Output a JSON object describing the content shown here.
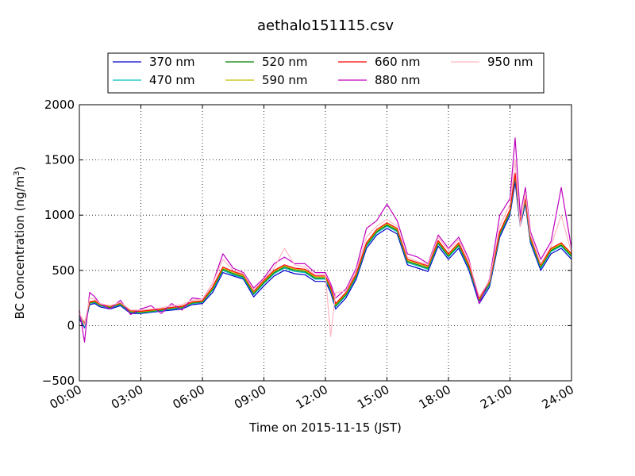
{
  "chart_data": {
    "type": "line",
    "title": "aethalo151115.csv",
    "xlabel": "Time on 2015-11-15 (JST)",
    "ylabel_main": "BC Concentration (ng/m",
    "ylabel_sup": "3",
    "ylabel_close": ")",
    "x_unit": "hours",
    "xlim": [
      0,
      24
    ],
    "ylim": [
      -500,
      2000
    ],
    "x_ticks": [
      0,
      3,
      6,
      9,
      12,
      15,
      18,
      21,
      24
    ],
    "x_tick_labels": [
      "00:00",
      "03:00",
      "06:00",
      "09:00",
      "12:00",
      "15:00",
      "18:00",
      "21:00",
      "24:00"
    ],
    "y_ticks": [
      -500,
      0,
      500,
      1000,
      1500,
      2000
    ],
    "y_tick_labels": [
      "−500",
      "0",
      "500",
      "1000",
      "1500",
      "2000"
    ],
    "grid": true,
    "legend_position": "top",
    "x": [
      0.0,
      0.25,
      0.5,
      0.75,
      1.0,
      1.5,
      2.0,
      2.5,
      3.0,
      3.5,
      4.0,
      4.5,
      5.0,
      5.5,
      6.0,
      6.5,
      7.0,
      7.5,
      8.0,
      8.5,
      9.0,
      9.5,
      10.0,
      10.5,
      11.0,
      11.5,
      12.0,
      12.25,
      12.5,
      13.0,
      13.5,
      14.0,
      14.5,
      15.0,
      15.5,
      16.0,
      16.5,
      17.0,
      17.5,
      18.0,
      18.5,
      19.0,
      19.5,
      20.0,
      20.5,
      21.0,
      21.25,
      21.5,
      21.75,
      22.0,
      22.5,
      23.0,
      23.5,
      24.0
    ],
    "series": [
      {
        "name": "370 nm",
        "color": "#0000cc",
        "values": [
          60,
          -20,
          190,
          200,
          170,
          150,
          180,
          110,
          110,
          120,
          130,
          140,
          150,
          190,
          200,
          300,
          480,
          450,
          420,
          260,
          360,
          450,
          500,
          470,
          460,
          400,
          400,
          300,
          150,
          250,
          420,
          700,
          820,
          880,
          830,
          550,
          520,
          490,
          720,
          600,
          700,
          500,
          200,
          350,
          800,
          1000,
          1300,
          900,
          1100,
          750,
          500,
          650,
          700,
          600
        ]
      },
      {
        "name": "470 nm",
        "color": "#00bfbf",
        "values": [
          80,
          -10,
          200,
          210,
          180,
          160,
          190,
          120,
          115,
          125,
          135,
          150,
          160,
          200,
          210,
          320,
          500,
          460,
          430,
          280,
          380,
          470,
          520,
          490,
          480,
          420,
          420,
          320,
          170,
          270,
          440,
          720,
          840,
          900,
          850,
          570,
          540,
          510,
          740,
          620,
          720,
          520,
          220,
          370,
          820,
          1020,
          1350,
          920,
          1120,
          770,
          520,
          670,
          720,
          620
        ]
      },
      {
        "name": "520 nm",
        "color": "#007f00",
        "values": [
          90,
          0,
          205,
          215,
          185,
          165,
          195,
          125,
          120,
          130,
          140,
          155,
          165,
          205,
          215,
          330,
          510,
          470,
          440,
          290,
          390,
          480,
          530,
          500,
          490,
          430,
          430,
          330,
          180,
          280,
          450,
          730,
          850,
          910,
          860,
          580,
          550,
          520,
          750,
          630,
          730,
          530,
          230,
          380,
          830,
          1030,
          1360,
          930,
          1130,
          780,
          530,
          680,
          730,
          630
        ]
      },
      {
        "name": "590 nm",
        "color": "#bfbf00",
        "values": [
          100,
          10,
          210,
          220,
          190,
          170,
          200,
          130,
          125,
          135,
          145,
          160,
          170,
          210,
          220,
          340,
          520,
          480,
          450,
          300,
          400,
          490,
          540,
          510,
          500,
          440,
          440,
          340,
          190,
          290,
          460,
          740,
          860,
          920,
          870,
          590,
          560,
          530,
          760,
          640,
          740,
          540,
          240,
          390,
          840,
          1040,
          1370,
          940,
          1140,
          790,
          540,
          690,
          740,
          640
        ]
      },
      {
        "name": "660 nm",
        "color": "#ff0000",
        "values": [
          110,
          20,
          215,
          225,
          195,
          175,
          205,
          135,
          130,
          140,
          150,
          165,
          175,
          215,
          225,
          350,
          530,
          490,
          460,
          310,
          410,
          500,
          550,
          520,
          510,
          450,
          450,
          350,
          200,
          300,
          470,
          750,
          870,
          930,
          880,
          600,
          570,
          540,
          770,
          650,
          750,
          550,
          250,
          400,
          850,
          1050,
          1380,
          950,
          1150,
          800,
          550,
          700,
          750,
          650
        ]
      },
      {
        "name": "880 nm",
        "color": "#bf00bf",
        "values": [
          140,
          -150,
          300,
          260,
          200,
          150,
          230,
          100,
          150,
          180,
          110,
          200,
          140,
          250,
          240,
          380,
          650,
          520,
          480,
          340,
          430,
          560,
          620,
          560,
          560,
          480,
          480,
          380,
          250,
          330,
          520,
          880,
          950,
          1100,
          950,
          650,
          620,
          560,
          820,
          700,
          800,
          600,
          200,
          420,
          1000,
          1150,
          1700,
          1000,
          1250,
          850,
          600,
          760,
          1250,
          700
        ]
      },
      {
        "name": "950 nm",
        "color": "#ffb6c1",
        "values": [
          120,
          0,
          250,
          240,
          200,
          180,
          210,
          140,
          140,
          150,
          160,
          180,
          190,
          230,
          240,
          380,
          600,
          500,
          470,
          320,
          420,
          520,
          700,
          550,
          530,
          460,
          460,
          -100,
          300,
          310,
          500,
          800,
          900,
          960,
          900,
          620,
          580,
          550,
          800,
          680,
          780,
          580,
          260,
          410,
          900,
          1100,
          1500,
          900,
          1200,
          820,
          560,
          720,
          1000,
          660
        ]
      }
    ]
  }
}
